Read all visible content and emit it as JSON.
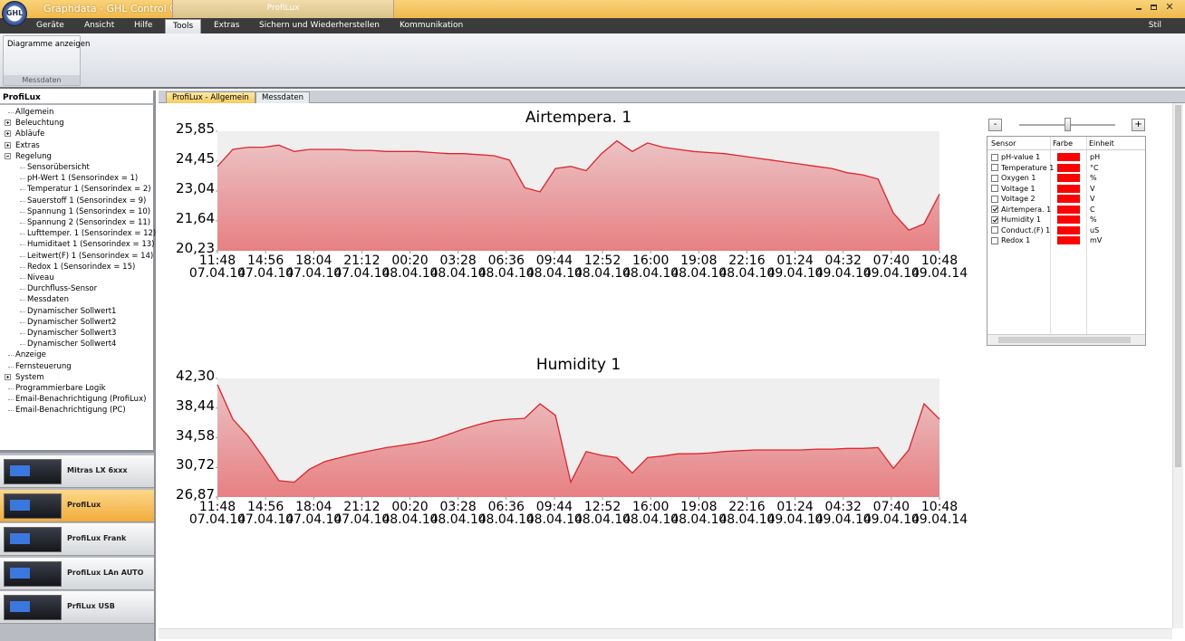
{
  "window": {
    "title": "Graphdata - GHL Control Cent...",
    "context_tab": "ProfiLux",
    "style_menu": "Stil"
  },
  "menu": {
    "items": [
      "Geräte",
      "Ansicht",
      "Hilfe",
      "Tools",
      "Extras",
      "Sichern und Wiederherstellen",
      "Kommunikation"
    ],
    "selected": 3
  },
  "ribbon": {
    "button": "Diagramme anzeigen",
    "group": "Messdaten"
  },
  "sidebar": {
    "title": "ProfiLux",
    "tree": [
      {
        "label": "Allgemein"
      },
      {
        "label": "Beleuchtung",
        "expandable": true
      },
      {
        "label": "Abläufe",
        "expandable": true
      },
      {
        "label": "Extras",
        "expandable": true
      },
      {
        "label": "Regelung",
        "children": [
          {
            "label": "Sensorübersicht"
          },
          {
            "label": "pH-Wert 1 (Sensorindex = 1)"
          },
          {
            "label": "Temperatur 1 (Sensorindex = 2)"
          },
          {
            "label": "Sauerstoff 1 (Sensorindex = 9)"
          },
          {
            "label": "Spannung 1 (Sensorindex = 10)"
          },
          {
            "label": "Spannung 2 (Sensorindex = 11)"
          },
          {
            "label": "Lufttemper. 1 (Sensorindex = 12)"
          },
          {
            "label": "Humiditaet 1 (Sensorindex = 13)"
          },
          {
            "label": "Leitwert(F) 1 (Sensorindex = 14)"
          },
          {
            "label": "Redox 1 (Sensorindex = 15)"
          },
          {
            "label": "Niveau"
          },
          {
            "label": "Durchfluss-Sensor"
          },
          {
            "label": "Messdaten"
          },
          {
            "label": "Dynamischer Sollwert1"
          },
          {
            "label": "Dynamischer Sollwert2"
          },
          {
            "label": "Dynamischer Sollwert3"
          },
          {
            "label": "Dynamischer Sollwert4"
          }
        ]
      },
      {
        "label": "Anzeige"
      },
      {
        "label": "Fernsteuerung"
      },
      {
        "label": "System",
        "expandable": true
      },
      {
        "label": "Programmierbare Logik"
      },
      {
        "label": "Email-Benachrichtigung (ProfiLux)"
      },
      {
        "label": "Email-Benachrichtigung (PC)"
      }
    ]
  },
  "devices": {
    "items": [
      "Mitras LX 6xxx",
      "ProfiLux",
      "ProfiLux Frank",
      "ProfiLux LAn AUTO",
      "PrfiLux USB"
    ],
    "selected": 1
  },
  "tabs": {
    "items": [
      "ProfiLux - Allgemein",
      "Messdaten"
    ],
    "active": 1
  },
  "chart_data": [
    {
      "type": "area",
      "title": "Airtempera. 1",
      "color": "#e0252b",
      "x": [
        "2014-04-07T11:48",
        "2014-04-07T12:48",
        "2014-04-07T13:48",
        "2014-04-07T14:48",
        "2014-04-07T15:48",
        "2014-04-07T16:48",
        "2014-04-07T17:48",
        "2014-04-07T18:48",
        "2014-04-07T19:48",
        "2014-04-07T20:48",
        "2014-04-07T21:48",
        "2014-04-07T22:48",
        "2014-04-07T23:48",
        "2014-04-08T00:48",
        "2014-04-08T01:48",
        "2014-04-08T02:48",
        "2014-04-08T03:48",
        "2014-04-08T04:48",
        "2014-04-08T05:48",
        "2014-04-08T06:48",
        "2014-04-08T07:48",
        "2014-04-08T08:48",
        "2014-04-08T09:48",
        "2014-04-08T10:48",
        "2014-04-08T11:48",
        "2014-04-08T12:48",
        "2014-04-08T13:48",
        "2014-04-08T14:48",
        "2014-04-08T15:48",
        "2014-04-08T16:48",
        "2014-04-08T17:48",
        "2014-04-08T18:48",
        "2014-04-08T19:48",
        "2014-04-08T20:48",
        "2014-04-08T21:48",
        "2014-04-08T22:48",
        "2014-04-08T23:48",
        "2014-04-09T00:48",
        "2014-04-09T01:48",
        "2014-04-09T02:48",
        "2014-04-09T03:48",
        "2014-04-09T04:48",
        "2014-04-09T05:48",
        "2014-04-09T06:48",
        "2014-04-09T07:48",
        "2014-04-09T08:48",
        "2014-04-09T09:48",
        "2014-04-09T10:48"
      ],
      "values": [
        24.2,
        25.0,
        25.1,
        25.1,
        25.2,
        24.9,
        25.0,
        25.0,
        25.0,
        24.95,
        24.95,
        24.9,
        24.9,
        24.9,
        24.85,
        24.8,
        24.8,
        24.75,
        24.7,
        24.5,
        23.2,
        23.0,
        24.1,
        24.2,
        24.0,
        24.8,
        25.4,
        24.9,
        25.3,
        25.1,
        25.0,
        24.9,
        24.85,
        24.8,
        24.7,
        24.6,
        24.5,
        24.4,
        24.3,
        24.2,
        24.1,
        23.9,
        23.8,
        23.6,
        22.0,
        21.2,
        21.5,
        22.9
      ],
      "xlim": [
        "2014-04-07T11:48",
        "2014-04-09T10:48"
      ],
      "xticks": [
        {
          "value": "2014-04-07T11:48",
          "label": "11:48\n07.04.14"
        },
        {
          "value": "2014-04-07T14:56",
          "label": "14:56\n07.04.14"
        },
        {
          "value": "2014-04-07T18:04",
          "label": "18:04\n07.04.14"
        },
        {
          "value": "2014-04-07T21:12",
          "label": "21:12\n07.04.14"
        },
        {
          "value": "2014-04-08T00:20",
          "label": "00:20\n08.04.14"
        },
        {
          "value": "2014-04-08T03:28",
          "label": "03:28\n08.04.14"
        },
        {
          "value": "2014-04-08T06:36",
          "label": "06:36\n08.04.14"
        },
        {
          "value": "2014-04-08T09:44",
          "label": "09:44\n08.04.14"
        },
        {
          "value": "2014-04-08T12:52",
          "label": "12:52\n08.04.14"
        },
        {
          "value": "2014-04-08T16:00",
          "label": "16:00\n08.04.14"
        },
        {
          "value": "2014-04-08T19:08",
          "label": "19:08\n08.04.14"
        },
        {
          "value": "2014-04-08T22:16",
          "label": "22:16\n08.04.14"
        },
        {
          "value": "2014-04-09T01:24",
          "label": "01:24\n09.04.14"
        },
        {
          "value": "2014-04-09T04:32",
          "label": "04:32\n09.04.14"
        },
        {
          "value": "2014-04-09T07:40",
          "label": "07:40\n09.04.14"
        },
        {
          "value": "2014-04-09T10:48",
          "label": "10:48\n09.04.14"
        }
      ],
      "ylim": [
        20.23,
        25.85
      ],
      "yticks": [
        {
          "value": 20.23,
          "label": "20,23"
        },
        {
          "value": 21.64,
          "label": "21,64"
        },
        {
          "value": 23.04,
          "label": "23,04"
        },
        {
          "value": 24.45,
          "label": "24,45"
        },
        {
          "value": 25.85,
          "label": "25,85"
        }
      ]
    },
    {
      "type": "area",
      "title": "Humidity 1",
      "color": "#e0252b",
      "x": [
        "2014-04-07T11:48",
        "2014-04-07T12:48",
        "2014-04-07T13:48",
        "2014-04-07T14:48",
        "2014-04-07T15:48",
        "2014-04-07T16:48",
        "2014-04-07T17:48",
        "2014-04-07T18:48",
        "2014-04-07T19:48",
        "2014-04-07T20:48",
        "2014-04-07T21:48",
        "2014-04-07T22:48",
        "2014-04-07T23:48",
        "2014-04-08T00:48",
        "2014-04-08T01:48",
        "2014-04-08T02:48",
        "2014-04-08T03:48",
        "2014-04-08T04:48",
        "2014-04-08T05:48",
        "2014-04-08T06:48",
        "2014-04-08T07:48",
        "2014-04-08T08:48",
        "2014-04-08T09:48",
        "2014-04-08T10:48",
        "2014-04-08T11:48",
        "2014-04-08T12:48",
        "2014-04-08T13:48",
        "2014-04-08T14:48",
        "2014-04-08T15:48",
        "2014-04-08T16:48",
        "2014-04-08T17:48",
        "2014-04-08T18:48",
        "2014-04-08T19:48",
        "2014-04-08T20:48",
        "2014-04-08T21:48",
        "2014-04-08T22:48",
        "2014-04-08T23:48",
        "2014-04-09T00:48",
        "2014-04-09T01:48",
        "2014-04-09T02:48",
        "2014-04-09T03:48",
        "2014-04-09T04:48",
        "2014-04-09T05:48",
        "2014-04-09T06:48",
        "2014-04-09T07:48",
        "2014-04-09T08:48",
        "2014-04-09T09:48",
        "2014-04-09T10:48"
      ],
      "values": [
        41.5,
        37.0,
        34.8,
        32.0,
        29.0,
        28.8,
        30.5,
        31.5,
        32.0,
        32.5,
        32.9,
        33.3,
        33.6,
        33.9,
        34.3,
        35.0,
        35.7,
        36.3,
        36.8,
        37.0,
        37.1,
        39.0,
        37.5,
        28.8,
        32.8,
        32.3,
        32.0,
        30.0,
        32.0,
        32.2,
        32.5,
        32.5,
        32.6,
        32.8,
        32.9,
        33.0,
        33.0,
        33.0,
        33.0,
        33.1,
        33.1,
        33.2,
        33.2,
        33.3,
        30.6,
        33.0,
        39.0,
        37.0
      ],
      "xlim": [
        "2014-04-07T11:48",
        "2014-04-09T10:48"
      ],
      "xticks": [
        {
          "value": "2014-04-07T11:48",
          "label": "11:48\n07.04.14"
        },
        {
          "value": "2014-04-07T14:56",
          "label": "14:56\n07.04.14"
        },
        {
          "value": "2014-04-07T18:04",
          "label": "18:04\n07.04.14"
        },
        {
          "value": "2014-04-07T21:12",
          "label": "21:12\n07.04.14"
        },
        {
          "value": "2014-04-08T00:20",
          "label": "00:20\n08.04.14"
        },
        {
          "value": "2014-04-08T03:28",
          "label": "03:28\n08.04.14"
        },
        {
          "value": "2014-04-08T06:36",
          "label": "06:36\n08.04.14"
        },
        {
          "value": "2014-04-08T09:44",
          "label": "09:44\n08.04.14"
        },
        {
          "value": "2014-04-08T12:52",
          "label": "12:52\n08.04.14"
        },
        {
          "value": "2014-04-08T16:00",
          "label": "16:00\n08.04.14"
        },
        {
          "value": "2014-04-08T19:08",
          "label": "19:08\n08.04.14"
        },
        {
          "value": "2014-04-08T22:16",
          "label": "22:16\n08.04.14"
        },
        {
          "value": "2014-04-09T01:24",
          "label": "01:24\n09.04.14"
        },
        {
          "value": "2014-04-09T04:32",
          "label": "04:32\n09.04.14"
        },
        {
          "value": "2014-04-09T07:40",
          "label": "07:40\n09.04.14"
        },
        {
          "value": "2014-04-09T10:48",
          "label": "10:48\n09.04.14"
        }
      ],
      "ylim": [
        26.87,
        42.3
      ],
      "yticks": [
        {
          "value": 26.87,
          "label": "26,87"
        },
        {
          "value": 30.72,
          "label": "30,72"
        },
        {
          "value": 34.58,
          "label": "34,58"
        },
        {
          "value": 38.44,
          "label": "38,44"
        },
        {
          "value": 42.3,
          "label": "42,30"
        }
      ]
    }
  ],
  "sensor_panel": {
    "minus": "-",
    "plus": "+",
    "columns": [
      "Sensor",
      "Farbe",
      "Einheit"
    ],
    "sensors": [
      {
        "name": "pH-value 1",
        "checked": false,
        "color": "#ff0000",
        "unit": "pH"
      },
      {
        "name": "Temperature 1",
        "checked": false,
        "color": "#ff0000",
        "unit": "°C"
      },
      {
        "name": "Oxygen 1",
        "checked": false,
        "color": "#ff0000",
        "unit": "%"
      },
      {
        "name": "Voltage 1",
        "checked": false,
        "color": "#ff0000",
        "unit": "V"
      },
      {
        "name": "Voltage 2",
        "checked": false,
        "color": "#ff0000",
        "unit": "V"
      },
      {
        "name": "Airtempera. 1",
        "checked": true,
        "color": "#ff0000",
        "unit": "C"
      },
      {
        "name": "Humidity 1",
        "checked": true,
        "color": "#ff0000",
        "unit": "%"
      },
      {
        "name": "Conduct.(F) 1",
        "checked": false,
        "color": "#ff0000",
        "unit": "uS"
      },
      {
        "name": "Redox 1",
        "checked": false,
        "color": "#ff0000",
        "unit": "mV"
      }
    ]
  }
}
